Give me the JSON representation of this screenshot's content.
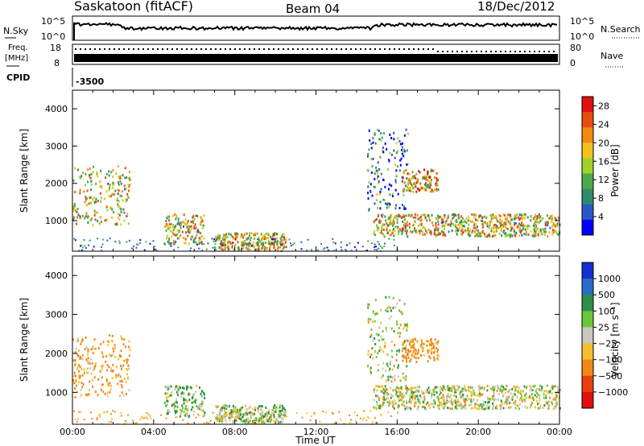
{
  "header": {
    "station": "Saskatoon (fitACF)",
    "beam": "Beam 04",
    "date": "18/Dec/2012"
  },
  "noise_panel": {
    "left_label": "N.Sky",
    "left_ticks": [
      "10^5",
      "10^0"
    ],
    "right_label": "N.Search",
    "right_ticks": [
      "10^5",
      "10^0"
    ]
  },
  "freq_panel": {
    "left_label_1": "Freq.",
    "left_label_2": "[MHz]",
    "left_ticks": [
      "18",
      "8"
    ],
    "right_label": "Nave",
    "right_ticks": [
      "80",
      "0"
    ]
  },
  "cpid": {
    "label": "CPID",
    "value": "-3500"
  },
  "x_axis": {
    "label": "Time UT",
    "ticks": [
      "00:00",
      "04:00",
      "08:00",
      "12:00",
      "16:00",
      "20:00",
      "00:00"
    ]
  },
  "colors": {
    "power_scale": [
      "#0000ff",
      "#2a58c8",
      "#2f8b6c",
      "#4ea84a",
      "#9fd22b",
      "#f2c21a",
      "#f08a10",
      "#ea4b12",
      "#e01010"
    ],
    "velocity_scale": [
      "#1030d0",
      "#2a6cc8",
      "#2c8f4a",
      "#6cc63a",
      "#c8c8c0",
      "#f4c030",
      "#f08818",
      "#e84010",
      "#e01010"
    ]
  },
  "chart_data": [
    {
      "type": "heatmap",
      "title": "Power",
      "xlabel": "Time UT",
      "ylabel": "Slant Range [km]",
      "xlim": [
        0,
        24
      ],
      "ylim": [
        180,
        4500
      ],
      "x_ticks": [
        "00:00",
        "04:00",
        "08:00",
        "12:00",
        "16:00",
        "20:00",
        "00:00"
      ],
      "y_ticks": [
        "1000",
        "2000",
        "3000",
        "4000"
      ],
      "colorbar": {
        "label": "Power [dB]",
        "ticks": [
          "4",
          "8",
          "12",
          "16",
          "20",
          "24",
          "28"
        ],
        "range": [
          0,
          30
        ]
      },
      "scatter_regions": [
        {
          "t0": 0.0,
          "t1": 2.8,
          "r0": 900,
          "r1": 2500,
          "level": 0.55
        },
        {
          "t0": 4.5,
          "t1": 6.5,
          "r0": 400,
          "r1": 1200,
          "level": 0.55
        },
        {
          "t0": 7.0,
          "t1": 10.5,
          "r0": 250,
          "r1": 700,
          "level": 0.6
        },
        {
          "t0": 14.8,
          "t1": 24.0,
          "r0": 600,
          "r1": 1200,
          "level": 0.55
        },
        {
          "t0": 16.2,
          "t1": 18.0,
          "r0": 1800,
          "r1": 2400,
          "level": 0.65
        },
        {
          "t0": 14.5,
          "t1": 16.5,
          "r0": 1300,
          "r1": 3500,
          "level": 0.25
        }
      ]
    },
    {
      "type": "heatmap",
      "title": "Velocity",
      "xlabel": "Time UT",
      "ylabel": "Slant Range [km]",
      "xlim": [
        0,
        24
      ],
      "ylim": [
        180,
        4500
      ],
      "x_ticks": [
        "00:00",
        "04:00",
        "08:00",
        "12:00",
        "16:00",
        "20:00",
        "00:00"
      ],
      "y_ticks": [
        "1000",
        "2000",
        "3000",
        "4000"
      ],
      "colorbar": {
        "label": "Velocity [m s⁻¹]",
        "ticks": [
          "1000",
          "500",
          "100",
          "25",
          "−25",
          "−100",
          "−500",
          "−1000"
        ],
        "range": [
          -1200,
          1200
        ]
      },
      "scatter_regions": [
        {
          "t0": 0.0,
          "t1": 2.8,
          "r0": 900,
          "r1": 2500,
          "velocity": -150
        },
        {
          "t0": 4.5,
          "t1": 6.5,
          "r0": 400,
          "r1": 1200,
          "velocity": 80
        },
        {
          "t0": 7.0,
          "t1": 10.5,
          "r0": 250,
          "r1": 700,
          "velocity": 60
        },
        {
          "t0": 14.8,
          "t1": 24.0,
          "r0": 600,
          "r1": 1200,
          "velocity": 0
        },
        {
          "t0": 16.2,
          "t1": 18.0,
          "r0": 1800,
          "r1": 2400,
          "velocity": -200
        },
        {
          "t0": 14.5,
          "t1": 16.5,
          "r0": 1300,
          "r1": 3500,
          "velocity": 0
        }
      ]
    }
  ]
}
